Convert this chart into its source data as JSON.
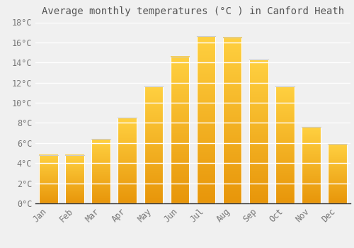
{
  "title": "Average monthly temperatures (°C ) in Canford Heath",
  "months": [
    "Jan",
    "Feb",
    "Mar",
    "Apr",
    "May",
    "Jun",
    "Jul",
    "Aug",
    "Sep",
    "Oct",
    "Nov",
    "Dec"
  ],
  "values": [
    4.8,
    4.8,
    6.4,
    8.5,
    11.6,
    14.6,
    16.6,
    16.5,
    14.3,
    11.6,
    7.6,
    5.9
  ],
  "bar_color_bottom": "#E8960A",
  "bar_color_top": "#FFD040",
  "ylim": [
    0,
    18
  ],
  "yticks": [
    0,
    2,
    4,
    6,
    8,
    10,
    12,
    14,
    16,
    18
  ],
  "ytick_labels": [
    "0°C",
    "2°C",
    "4°C",
    "6°C",
    "8°C",
    "10°C",
    "12°C",
    "14°C",
    "16°C",
    "18°C"
  ],
  "background_color": "#f0f0f0",
  "grid_color": "#ffffff",
  "title_fontsize": 10,
  "tick_fontsize": 8.5,
  "bar_width": 0.72
}
